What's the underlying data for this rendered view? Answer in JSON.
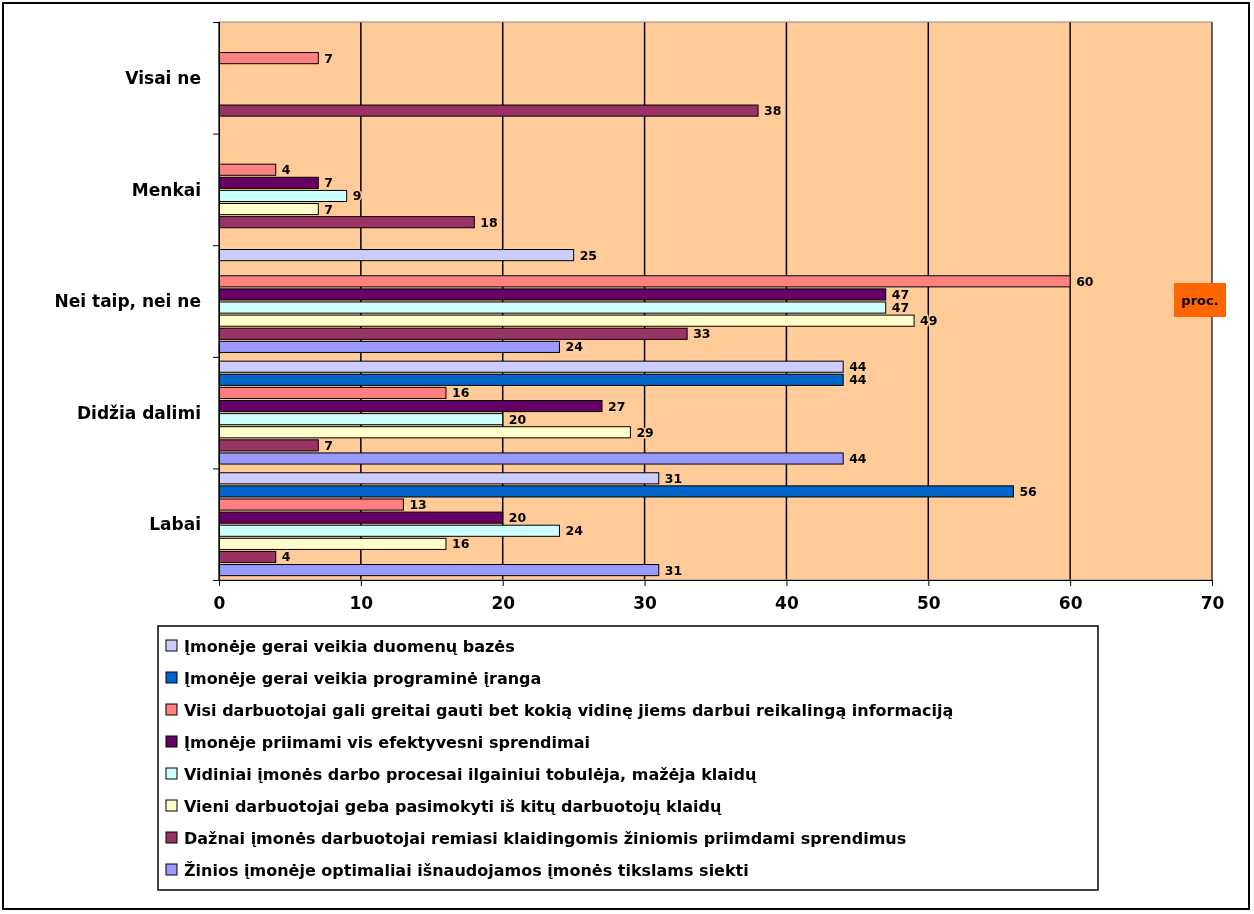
{
  "chart_data": {
    "type": "bar",
    "orientation": "horizontal",
    "xlabel": "proc.",
    "categories": [
      "Visai ne",
      "Menkai",
      "Nei taip, nei ne",
      "Didžia dalimi",
      "Labai"
    ],
    "series": [
      {
        "name": "Įmonėje gerai veikia duomenų bazės",
        "color": "#ccccff",
        "values": [
          null,
          null,
          25,
          44,
          31
        ]
      },
      {
        "name": "Įmonėje gerai veikia programinė įranga",
        "color": "#0066cc",
        "values": [
          null,
          null,
          null,
          44,
          56
        ]
      },
      {
        "name": "Visi darbuotojai gali greitai gauti bet kokią vidinę jiems darbui reikalingą informaciją",
        "color": "#ff8080",
        "values": [
          7,
          4,
          60,
          16,
          13
        ]
      },
      {
        "name": "Įmonėje priimami vis efektyvesni sprendimai",
        "color": "#660066",
        "values": [
          null,
          7,
          47,
          27,
          20
        ]
      },
      {
        "name": "Vidiniai įmonės darbo procesai ilgainiui tobulėja, mažėja klaidų",
        "color": "#ccffff",
        "values": [
          null,
          9,
          47,
          20,
          24
        ]
      },
      {
        "name": "Vieni darbuotojai geba pasimokyti iš kitų darbuotojų klaidų",
        "color": "#ffffcc",
        "values": [
          null,
          7,
          49,
          29,
          16
        ]
      },
      {
        "name": "Dažnai įmonės darbuotojai remiasi klaidingomis žiniomis priimdami sprendimus",
        "color": "#993366",
        "values": [
          38,
          18,
          33,
          7,
          4
        ]
      },
      {
        "name": "Žinios įmonėje optimaliai išnaudojamos įmonės tikslams siekti",
        "color": "#9999ff",
        "values": [
          null,
          null,
          24,
          44,
          31
        ]
      }
    ],
    "xlim": [
      0,
      70
    ],
    "xticks": [
      0,
      10,
      20,
      30,
      40,
      50,
      60,
      70
    ],
    "grid": "x",
    "data_labels": true,
    "legend": "bottom"
  }
}
